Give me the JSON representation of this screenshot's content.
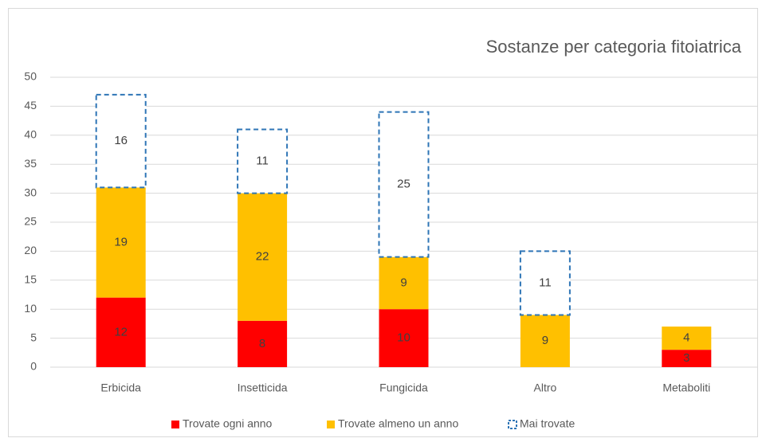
{
  "chart_data": {
    "type": "stacked-bar",
    "title": "Sostanze per categoria fitoiatrica",
    "categories": [
      "Erbicida",
      "Insetticida",
      "Fungicida",
      "Altro",
      "Metaboliti"
    ],
    "series": [
      {
        "name": "Trovate ogni anno",
        "color": "#ff0000",
        "values": [
          12,
          8,
          10,
          null,
          3
        ]
      },
      {
        "name": "Trovate almeno un anno",
        "color": "#ffc000",
        "values": [
          19,
          22,
          9,
          9,
          4
        ]
      },
      {
        "name": "Mai trovate",
        "color": "#2e75b6",
        "style": "dashed",
        "values": [
          16,
          11,
          25,
          11,
          null
        ]
      }
    ],
    "ylim": [
      0,
      50
    ],
    "yticks": [
      0,
      5,
      10,
      15,
      20,
      25,
      30,
      35,
      40,
      45,
      50
    ],
    "grid": true,
    "legend": "bottom"
  }
}
